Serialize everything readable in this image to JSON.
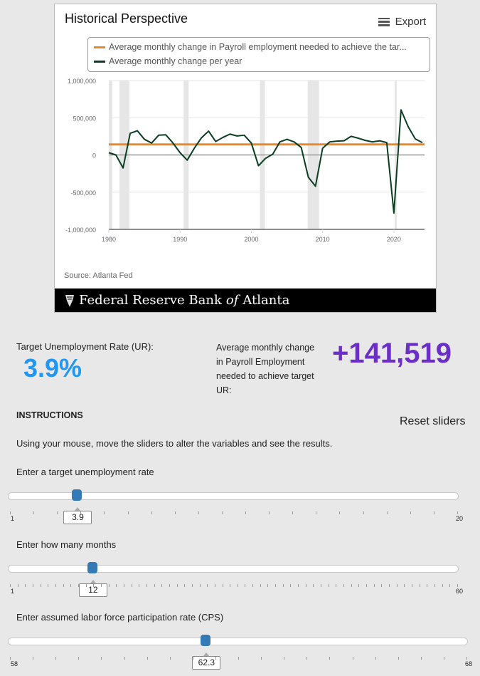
{
  "chart_card": {
    "title": "Historical Perspective",
    "export_label": "Export",
    "source": "Source: Atlanta Fed",
    "footer_brand": {
      "pre": "Federal Reserve Bank",
      "of": "of",
      "post": "Atlanta"
    }
  },
  "chart_data": {
    "type": "line",
    "title": "Historical Perspective",
    "legend_position": "top",
    "series": [
      {
        "name": "Average monthly change in Payroll employment needed to achieve the tar...",
        "color": "#e8892b",
        "constant": 141519
      },
      {
        "name": "Average monthly change per year",
        "color": "#0b3d20",
        "x": [
          1980,
          1981,
          1982,
          1983,
          1984,
          1985,
          1986,
          1987,
          1988,
          1989,
          1990,
          1991,
          1992,
          1993,
          1994,
          1995,
          1996,
          1997,
          1998,
          1999,
          2000,
          2001,
          2002,
          2003,
          2004,
          2005,
          2006,
          2007,
          2008,
          2009,
          2010,
          2011,
          2012,
          2013,
          2014,
          2015,
          2016,
          2017,
          2018,
          2019,
          2020,
          2021,
          2022,
          2023,
          2024
        ],
        "y": [
          30000,
          0,
          -175000,
          290000,
          325000,
          210000,
          160000,
          265000,
          270000,
          160000,
          30000,
          -70000,
          90000,
          230000,
          320000,
          180000,
          235000,
          280000,
          255000,
          265000,
          160000,
          -145000,
          -45000,
          10000,
          175000,
          210000,
          175000,
          100000,
          -300000,
          -420000,
          90000,
          175000,
          185000,
          190000,
          250000,
          225000,
          195000,
          175000,
          190000,
          165000,
          -780000,
          605000,
          380000,
          215000,
          165000
        ]
      }
    ],
    "recessions": [
      [
        1980.0,
        1980.5
      ],
      [
        1981.5,
        1982.9
      ],
      [
        1990.5,
        1991.2
      ],
      [
        2001.2,
        2001.9
      ],
      [
        2007.9,
        2009.5
      ],
      [
        2020.1,
        2020.3
      ]
    ],
    "xlim": [
      1980,
      2024.3
    ],
    "ylim": [
      -1000000,
      1000000
    ],
    "xticks": [
      "1980",
      "1990",
      "2000",
      "2010",
      "2020"
    ],
    "xtick_values": [
      1980,
      1990,
      2000,
      2010,
      2020
    ],
    "yticks": [
      "1,000,000",
      "500,000",
      "0",
      "-500,000",
      "-1,000,000"
    ],
    "ytick_values": [
      1000000,
      500000,
      0,
      -500000,
      -1000000
    ],
    "grid": true
  },
  "results": {
    "ur_label": "Target Unemployment Rate (UR):",
    "ur_value": "3.9%",
    "payroll_label": "Average monthly change in Payroll Employment needed to achieve target UR:",
    "payroll_value": "+141,519"
  },
  "instructions": {
    "heading": "INSTRUCTIONS",
    "reset_label": "Reset sliders",
    "text": "Using your mouse, move the sliders to alter the variables and see the results."
  },
  "sliders": [
    {
      "label": "Enter a target unemployment rate",
      "min": 1,
      "max": 20,
      "value": 3.9,
      "value_text": "3.9",
      "min_text": "1",
      "max_text": "20",
      "ticks": 19
    },
    {
      "label": "Enter how many months",
      "min": 1,
      "max": 60,
      "value": 12,
      "value_text": "12",
      "min_text": "1",
      "max_text": "60",
      "ticks": 59
    },
    {
      "label": "Enter assumed labor force participation rate (CPS)",
      "min": 58,
      "max": 68,
      "value": 62.3,
      "value_text": "62.3",
      "min_text": "58",
      "max_text": "68",
      "ticks": 20
    }
  ]
}
